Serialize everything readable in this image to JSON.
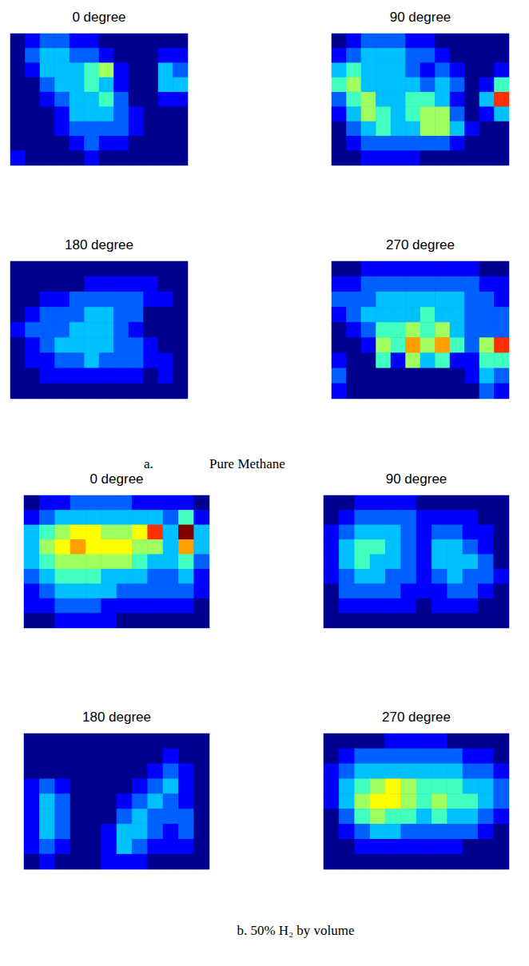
{
  "chart_data": [
    {
      "type": "heatmap",
      "title": "0 degree",
      "zlim": [
        0,
        10
      ],
      "tick_labels": false,
      "values": [
        [
          0,
          1,
          2,
          2,
          1,
          1,
          0,
          0,
          0,
          0,
          0,
          0
        ],
        [
          0,
          2,
          3,
          3,
          2,
          2,
          1,
          0,
          0,
          0,
          1,
          1
        ],
        [
          0,
          1,
          3,
          3,
          3,
          4,
          5,
          1,
          0,
          0,
          3,
          2
        ],
        [
          0,
          0,
          2,
          3,
          3,
          4,
          3,
          1,
          0,
          0,
          3,
          3
        ],
        [
          0,
          0,
          1,
          2,
          3,
          3,
          4,
          2,
          0,
          0,
          1,
          1
        ],
        [
          0,
          0,
          0,
          1,
          3,
          3,
          3,
          2,
          1,
          0,
          0,
          0
        ],
        [
          0,
          0,
          0,
          1,
          2,
          2,
          2,
          2,
          1,
          0,
          0,
          0
        ],
        [
          0,
          0,
          0,
          0,
          1,
          2,
          1,
          1,
          0,
          0,
          0,
          0
        ],
        [
          1,
          0,
          0,
          0,
          0,
          1,
          0,
          0,
          0,
          0,
          0,
          0
        ]
      ]
    },
    {
      "type": "heatmap",
      "title": "90 degree",
      "zlim": [
        0,
        10
      ],
      "tick_labels": false,
      "values": [
        [
          0,
          1,
          2,
          2,
          2,
          1,
          1,
          0,
          0,
          0,
          0,
          0
        ],
        [
          1,
          2,
          3,
          3,
          3,
          2,
          2,
          1,
          0,
          0,
          0,
          0
        ],
        [
          3,
          4,
          3,
          3,
          3,
          2,
          1,
          2,
          1,
          0,
          0,
          1
        ],
        [
          4,
          5,
          3,
          3,
          3,
          3,
          2,
          3,
          2,
          0,
          1,
          4
        ],
        [
          2,
          4,
          5,
          3,
          3,
          4,
          4,
          3,
          1,
          0,
          3,
          8
        ],
        [
          1,
          3,
          5,
          4,
          3,
          4,
          5,
          5,
          2,
          0,
          1,
          3
        ],
        [
          0,
          2,
          3,
          4,
          3,
          3,
          5,
          5,
          3,
          1,
          0,
          0
        ],
        [
          0,
          1,
          2,
          2,
          2,
          2,
          2,
          2,
          1,
          0,
          0,
          0
        ],
        [
          0,
          0,
          1,
          1,
          1,
          1,
          0,
          0,
          0,
          0,
          0,
          0
        ]
      ]
    },
    {
      "type": "heatmap",
      "title": "180 degree",
      "zlim": [
        0,
        10
      ],
      "tick_labels": false,
      "values": [
        [
          0,
          0,
          0,
          0,
          0,
          0,
          0,
          0,
          0,
          0,
          0,
          0
        ],
        [
          0,
          0,
          0,
          0,
          0,
          1,
          1,
          1,
          1,
          1,
          0,
          0
        ],
        [
          0,
          0,
          1,
          1,
          2,
          2,
          2,
          2,
          2,
          1,
          1,
          0
        ],
        [
          0,
          1,
          2,
          2,
          2,
          3,
          3,
          2,
          2,
          0,
          0,
          0
        ],
        [
          1,
          2,
          2,
          2,
          3,
          3,
          3,
          2,
          1,
          0,
          0,
          0
        ],
        [
          0,
          1,
          2,
          3,
          3,
          3,
          3,
          2,
          2,
          1,
          0,
          0
        ],
        [
          0,
          1,
          1,
          2,
          2,
          3,
          2,
          2,
          2,
          1,
          1,
          0
        ],
        [
          0,
          0,
          1,
          1,
          1,
          1,
          1,
          1,
          1,
          0,
          1,
          0
        ],
        [
          0,
          0,
          0,
          0,
          0,
          0,
          0,
          0,
          0,
          0,
          0,
          0
        ]
      ]
    },
    {
      "type": "heatmap",
      "title": "270 degree",
      "zlim": [
        0,
        10
      ],
      "tick_labels": false,
      "values": [
        [
          0,
          0,
          1,
          1,
          1,
          1,
          1,
          1,
          1,
          1,
          0,
          0
        ],
        [
          1,
          1,
          2,
          2,
          2,
          2,
          2,
          2,
          2,
          2,
          1,
          1
        ],
        [
          2,
          2,
          2,
          3,
          3,
          3,
          3,
          3,
          3,
          2,
          2,
          1
        ],
        [
          1,
          2,
          3,
          3,
          3,
          3,
          4,
          3,
          3,
          2,
          2,
          2
        ],
        [
          0,
          1,
          2,
          4,
          4,
          5,
          4,
          5,
          3,
          2,
          2,
          2
        ],
        [
          0,
          0,
          1,
          5,
          4,
          7,
          5,
          7,
          4,
          2,
          5,
          8
        ],
        [
          1,
          0,
          0,
          4,
          1,
          5,
          3,
          4,
          1,
          1,
          4,
          4
        ],
        [
          2,
          0,
          0,
          0,
          0,
          0,
          0,
          0,
          0,
          1,
          3,
          2
        ],
        [
          1,
          0,
          0,
          0,
          0,
          0,
          0,
          0,
          0,
          0,
          2,
          1
        ]
      ]
    },
    {
      "type": "heatmap",
      "title": "0 degree",
      "zlim": [
        0,
        10
      ],
      "tick_labels": false,
      "values": [
        [
          0,
          1,
          1,
          2,
          2,
          2,
          2,
          1,
          1,
          1,
          1,
          0
        ],
        [
          1,
          2,
          3,
          3,
          3,
          3,
          3,
          3,
          3,
          2,
          4,
          1
        ],
        [
          3,
          4,
          5,
          6,
          6,
          5,
          5,
          6,
          8,
          3,
          10,
          3
        ],
        [
          3,
          5,
          6,
          7,
          6,
          6,
          6,
          5,
          5,
          3,
          7,
          3
        ],
        [
          3,
          4,
          5,
          5,
          5,
          5,
          5,
          4,
          3,
          3,
          4,
          2
        ],
        [
          2,
          3,
          4,
          4,
          4,
          3,
          3,
          3,
          2,
          2,
          3,
          1
        ],
        [
          1,
          2,
          3,
          3,
          3,
          3,
          2,
          2,
          2,
          2,
          2,
          1
        ],
        [
          1,
          1,
          2,
          2,
          2,
          1,
          1,
          1,
          1,
          1,
          1,
          0
        ],
        [
          0,
          0,
          1,
          1,
          1,
          1,
          0,
          0,
          0,
          0,
          0,
          0
        ]
      ]
    },
    {
      "type": "heatmap",
      "title": "90 degree",
      "zlim": [
        0,
        10
      ],
      "tick_labels": false,
      "values": [
        [
          0,
          0,
          1,
          1,
          1,
          1,
          0,
          0,
          0,
          0,
          0,
          0
        ],
        [
          0,
          1,
          2,
          2,
          2,
          2,
          1,
          1,
          1,
          1,
          0,
          0
        ],
        [
          1,
          2,
          3,
          3,
          3,
          2,
          1,
          2,
          2,
          1,
          1,
          0
        ],
        [
          1,
          3,
          4,
          4,
          3,
          2,
          1,
          3,
          3,
          2,
          1,
          0
        ],
        [
          1,
          3,
          4,
          3,
          3,
          2,
          1,
          3,
          3,
          3,
          2,
          0
        ],
        [
          1,
          2,
          3,
          3,
          2,
          2,
          1,
          2,
          3,
          2,
          2,
          1
        ],
        [
          0,
          2,
          2,
          2,
          2,
          1,
          1,
          1,
          2,
          2,
          1,
          0
        ],
        [
          0,
          1,
          1,
          1,
          1,
          1,
          0,
          1,
          1,
          1,
          0,
          0
        ],
        [
          0,
          0,
          0,
          0,
          0,
          0,
          0,
          0,
          0,
          0,
          0,
          0
        ]
      ]
    },
    {
      "type": "heatmap",
      "title": "180 degree",
      "zlim": [
        0,
        10
      ],
      "tick_labels": false,
      "values": [
        [
          0,
          0,
          0,
          0,
          0,
          0,
          0,
          0,
          0,
          0,
          0,
          0
        ],
        [
          0,
          0,
          0,
          0,
          0,
          0,
          0,
          0,
          0,
          1,
          0,
          0
        ],
        [
          0,
          0,
          0,
          0,
          0,
          0,
          0,
          0,
          1,
          2,
          1,
          0
        ],
        [
          1,
          2,
          1,
          0,
          0,
          0,
          0,
          1,
          2,
          3,
          1,
          0
        ],
        [
          1,
          3,
          2,
          0,
          0,
          0,
          1,
          2,
          3,
          2,
          1,
          0
        ],
        [
          1,
          3,
          2,
          0,
          0,
          0,
          2,
          3,
          2,
          2,
          2,
          0
        ],
        [
          1,
          3,
          2,
          0,
          0,
          1,
          3,
          3,
          2,
          1,
          2,
          0
        ],
        [
          1,
          2,
          1,
          0,
          0,
          1,
          3,
          2,
          1,
          1,
          1,
          0
        ],
        [
          0,
          1,
          0,
          0,
          0,
          1,
          1,
          1,
          0,
          0,
          0,
          0
        ]
      ]
    },
    {
      "type": "heatmap",
      "title": "270 degree",
      "zlim": [
        0,
        10
      ],
      "tick_labels": false,
      "values": [
        [
          0,
          0,
          0,
          0,
          1,
          1,
          1,
          1,
          0,
          0,
          0,
          0
        ],
        [
          0,
          1,
          2,
          2,
          2,
          2,
          2,
          2,
          2,
          1,
          1,
          0
        ],
        [
          1,
          2,
          3,
          3,
          3,
          3,
          3,
          3,
          3,
          2,
          2,
          1
        ],
        [
          1,
          3,
          4,
          5,
          6,
          5,
          4,
          4,
          4,
          3,
          3,
          2
        ],
        [
          1,
          3,
          5,
          6,
          6,
          5,
          4,
          5,
          4,
          4,
          3,
          2
        ],
        [
          0,
          2,
          4,
          5,
          4,
          4,
          3,
          4,
          3,
          3,
          2,
          1
        ],
        [
          0,
          1,
          2,
          3,
          3,
          2,
          2,
          2,
          2,
          2,
          1,
          0
        ],
        [
          0,
          0,
          1,
          1,
          1,
          1,
          1,
          1,
          1,
          0,
          0,
          0
        ],
        [
          0,
          0,
          0,
          0,
          0,
          0,
          0,
          0,
          0,
          0,
          0,
          0
        ]
      ]
    }
  ],
  "captions": [
    {
      "label": "a.",
      "text": "Pure Methane"
    },
    {
      "label": "b.",
      "text": "50% H₂ by volume"
    }
  ]
}
